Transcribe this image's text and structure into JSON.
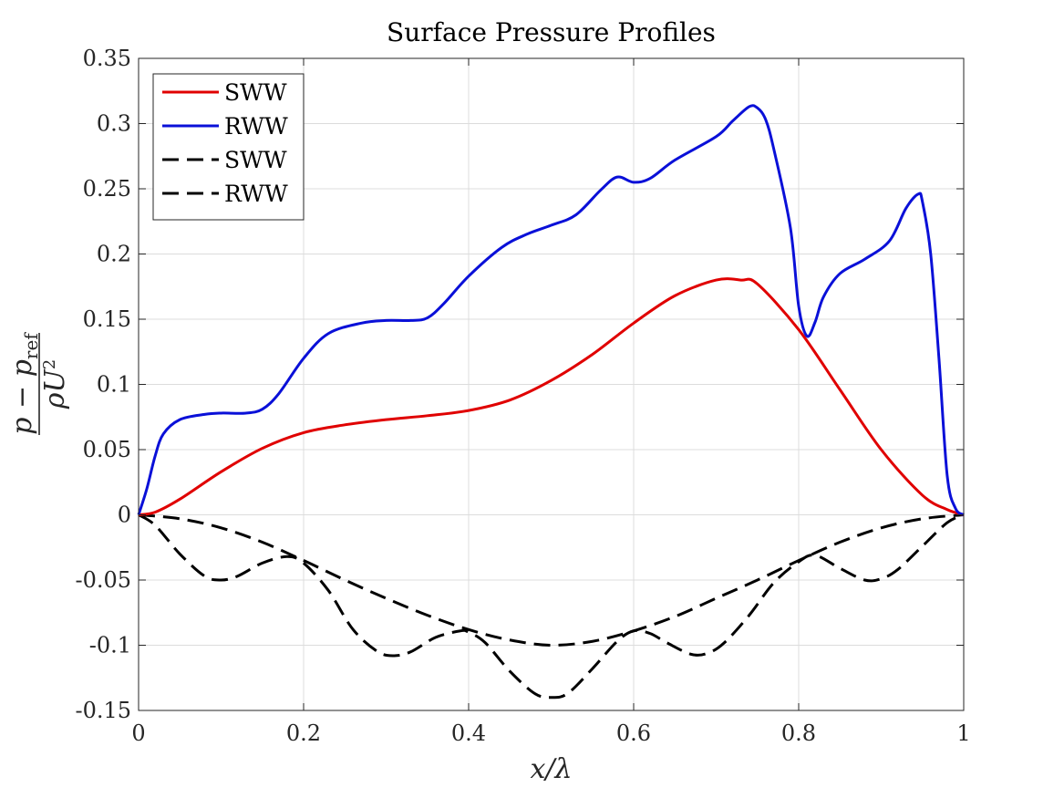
{
  "chart_data": {
    "type": "line",
    "title": "Surface Pressure Profiles",
    "xlabel": "x/λ",
    "ylabel": {
      "numerator": "p − p",
      "numerator_subscript": "ref",
      "denominator": "ρU",
      "denominator_superscript": "2"
    },
    "xlim": [
      0,
      1
    ],
    "ylim": [
      -0.15,
      0.35
    ],
    "xticks": [
      0,
      0.2,
      0.4,
      0.6,
      0.8,
      1
    ],
    "xtick_labels": [
      "0",
      "0.2",
      "0.4",
      "0.6",
      "0.8",
      "1"
    ],
    "yticks": [
      -0.15,
      -0.1,
      -0.05,
      0,
      0.05,
      0.1,
      0.15,
      0.2,
      0.25,
      0.3,
      0.35
    ],
    "ytick_labels": [
      "-0.15",
      "-0.1",
      "-0.05",
      "0",
      "0.05",
      "0.1",
      "0.15",
      "0.2",
      "0.25",
      "0.3",
      "0.35"
    ],
    "grid": true,
    "legend_position": "top-left",
    "series": [
      {
        "name": "SWW",
        "color": "#e00000",
        "style": "solid",
        "x": [
          0,
          0.02,
          0.05,
          0.1,
          0.15,
          0.2,
          0.25,
          0.3,
          0.35,
          0.4,
          0.45,
          0.5,
          0.55,
          0.6,
          0.65,
          0.7,
          0.73,
          0.75,
          0.8,
          0.85,
          0.9,
          0.95,
          0.98,
          1
        ],
        "y": [
          0,
          0.002,
          0.012,
          0.033,
          0.051,
          0.063,
          0.069,
          0.073,
          0.076,
          0.08,
          0.088,
          0.103,
          0.123,
          0.147,
          0.168,
          0.18,
          0.18,
          0.177,
          0.142,
          0.096,
          0.05,
          0.015,
          0.004,
          0
        ]
      },
      {
        "name": "RWW",
        "color": "#0a10d8",
        "style": "solid",
        "x": [
          0,
          0.01,
          0.02,
          0.03,
          0.05,
          0.08,
          0.1,
          0.13,
          0.15,
          0.17,
          0.2,
          0.23,
          0.27,
          0.3,
          0.33,
          0.35,
          0.37,
          0.4,
          0.44,
          0.47,
          0.5,
          0.53,
          0.56,
          0.58,
          0.6,
          0.62,
          0.65,
          0.7,
          0.72,
          0.74,
          0.75,
          0.76,
          0.77,
          0.79,
          0.8,
          0.81,
          0.82,
          0.83,
          0.85,
          0.88,
          0.91,
          0.93,
          0.945,
          0.95,
          0.96,
          0.97,
          0.98,
          0.99,
          1
        ],
        "y": [
          0,
          0.02,
          0.045,
          0.062,
          0.073,
          0.077,
          0.078,
          0.078,
          0.081,
          0.093,
          0.12,
          0.139,
          0.147,
          0.149,
          0.149,
          0.151,
          0.162,
          0.183,
          0.205,
          0.215,
          0.222,
          0.23,
          0.249,
          0.259,
          0.255,
          0.258,
          0.272,
          0.29,
          0.302,
          0.313,
          0.312,
          0.303,
          0.28,
          0.22,
          0.16,
          0.137,
          0.148,
          0.167,
          0.185,
          0.196,
          0.21,
          0.235,
          0.246,
          0.24,
          0.2,
          0.12,
          0.03,
          0.005,
          0
        ]
      },
      {
        "name": "SWW",
        "color": "#000000",
        "style": "dashed",
        "x": [
          0,
          0.05,
          0.1,
          0.15,
          0.2,
          0.25,
          0.3,
          0.35,
          0.4,
          0.45,
          0.5,
          0.55,
          0.6,
          0.65,
          0.7,
          0.75,
          0.8,
          0.85,
          0.9,
          0.95,
          1
        ],
        "y": [
          0,
          -0.003,
          -0.01,
          -0.021,
          -0.035,
          -0.05,
          -0.064,
          -0.077,
          -0.088,
          -0.096,
          -0.1,
          -0.097,
          -0.089,
          -0.078,
          -0.064,
          -0.05,
          -0.035,
          -0.021,
          -0.01,
          -0.003,
          0
        ]
      },
      {
        "name": "RWW",
        "color": "#000000",
        "style": "dashed",
        "x": [
          0,
          0.02,
          0.05,
          0.08,
          0.1,
          0.12,
          0.15,
          0.18,
          0.2,
          0.23,
          0.26,
          0.29,
          0.31,
          0.33,
          0.36,
          0.39,
          0.4,
          0.42,
          0.45,
          0.48,
          0.5,
          0.52,
          0.55,
          0.58,
          0.6,
          0.62,
          0.64,
          0.67,
          0.69,
          0.71,
          0.74,
          0.77,
          0.8,
          0.82,
          0.85,
          0.88,
          0.9,
          0.92,
          0.95,
          0.98,
          1
        ],
        "y": [
          0,
          -0.008,
          -0.03,
          -0.047,
          -0.05,
          -0.047,
          -0.037,
          -0.032,
          -0.037,
          -0.058,
          -0.088,
          -0.105,
          -0.108,
          -0.105,
          -0.094,
          -0.089,
          -0.09,
          -0.098,
          -0.12,
          -0.137,
          -0.14,
          -0.137,
          -0.118,
          -0.097,
          -0.089,
          -0.091,
          -0.098,
          -0.107,
          -0.106,
          -0.098,
          -0.077,
          -0.052,
          -0.036,
          -0.031,
          -0.041,
          -0.05,
          -0.049,
          -0.042,
          -0.024,
          -0.006,
          0
        ]
      }
    ]
  }
}
